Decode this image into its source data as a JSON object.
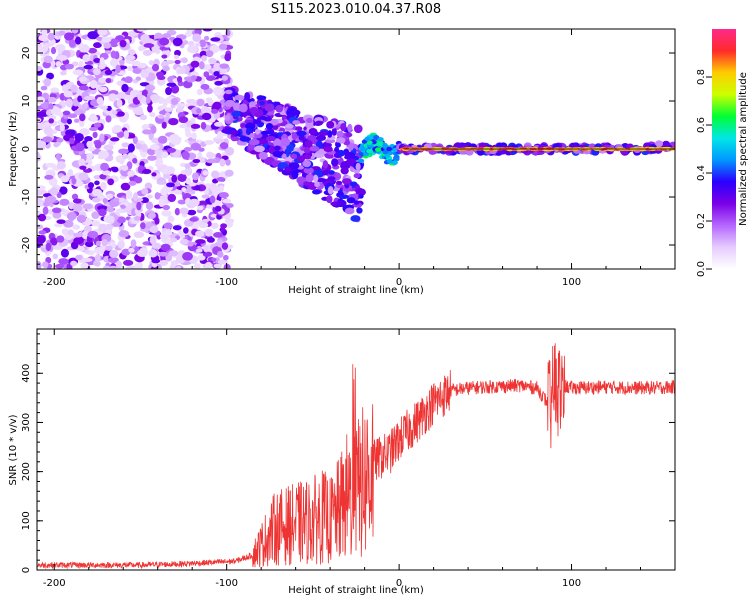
{
  "figure": {
    "title": "S115.2023.010.04.37.R08"
  },
  "chart_data": [
    {
      "type": "heatmap",
      "xlabel": "Height of straight line (km)",
      "ylabel": "Frequency (Hz)",
      "xlim": [
        -210,
        160
      ],
      "ylim": [
        -25,
        25
      ],
      "xticks": [
        -200,
        -100,
        0,
        100
      ],
      "yticks": [
        -20,
        -10,
        0,
        10,
        20
      ],
      "colorbar": {
        "label": "Normalized spectral amplitude",
        "range": [
          0,
          1
        ],
        "ticks": [
          "0.0",
          "0.2",
          "0.4",
          "0.6",
          "0.8"
        ],
        "colormap": [
          "#ffffff",
          "#e6ccff",
          "#b566ff",
          "#7a00e6",
          "#2a00ff",
          "#0099ff",
          "#00e6e6",
          "#00ff33",
          "#ccff00",
          "#ffcc00",
          "#ff2a2a",
          "#ff2a8a"
        ]
      },
      "regions": [
        {
          "x": [
            -210,
            -100
          ],
          "freq": [
            -25,
            25
          ],
          "amplitude": "low (0.05-0.3)"
        },
        {
          "x": [
            -100,
            -20
          ],
          "freq_center_drift": [
            8,
            -8
          ],
          "amplitude": "0.2-0.4"
        },
        {
          "x": [
            -20,
            0
          ],
          "freq": [
            -2,
            3
          ],
          "amplitude": "0.3-0.6"
        },
        {
          "x": [
            0,
            160
          ],
          "freq": [
            0,
            1
          ],
          "amplitude": "0.7-0.9"
        }
      ]
    },
    {
      "type": "line",
      "xlabel": "Height of straight line (km)",
      "ylabel": "SNR (10 * v/v)",
      "xlim": [
        -210,
        160
      ],
      "ylim": [
        0,
        490
      ],
      "xticks": [
        -200,
        -100,
        0,
        100
      ],
      "yticks": [
        0,
        100,
        200,
        300,
        400
      ],
      "color": "#ee3333",
      "series_x": [
        -210,
        -190,
        -170,
        -150,
        -130,
        -110,
        -95,
        -85,
        -78,
        -72,
        -65,
        -58,
        -50,
        -45,
        -40,
        -35,
        -30,
        -25,
        -20,
        -15,
        -10,
        -5,
        0,
        10,
        20,
        30,
        40,
        50,
        70,
        80,
        88,
        90,
        92,
        95,
        100,
        120,
        140,
        160
      ],
      "series_y": [
        10,
        10,
        10,
        10,
        12,
        15,
        18,
        30,
        60,
        85,
        90,
        95,
        100,
        110,
        100,
        120,
        150,
        160,
        180,
        220,
        230,
        240,
        265,
        300,
        340,
        365,
        370,
        372,
        375,
        370,
        330,
        380,
        360,
        375,
        370,
        372,
        370,
        372
      ]
    }
  ]
}
